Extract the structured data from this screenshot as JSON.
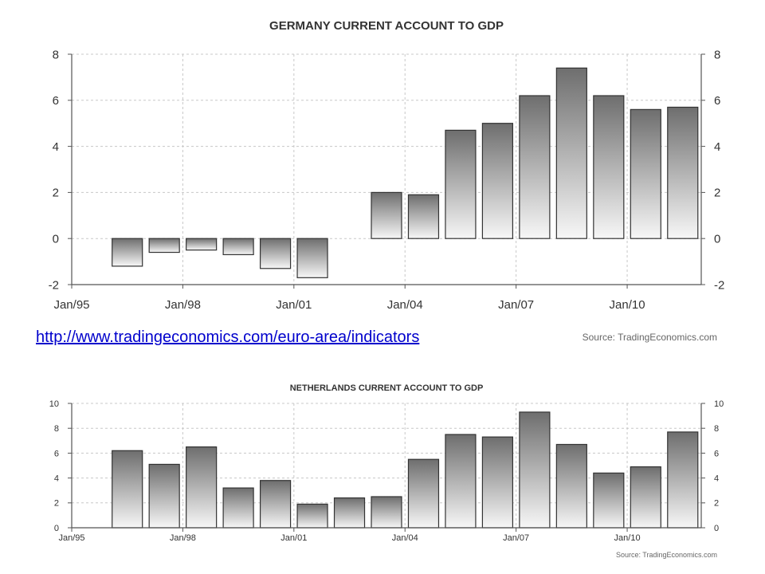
{
  "link": {
    "text": "http://www.tradingeconomics.com/euro-area/indicators"
  },
  "colors": {
    "bar_top": "#6e6e6e",
    "bar_bottom": "#f7f7f7",
    "bar_stroke": "#333333",
    "grid": "#c8c8c8",
    "axis": "#555555",
    "link": "#0000cc"
  },
  "chart_data": [
    {
      "type": "bar",
      "title": "GERMANY CURRENT ACCOUNT TO GDP",
      "source": "Source: TradingEconomics.com",
      "x": [
        "1995",
        "1996",
        "1997",
        "1998",
        "1999",
        "2000",
        "2001",
        "2002",
        "2003",
        "2004",
        "2005",
        "2006",
        "2007",
        "2008",
        "2009",
        "2010",
        "2011"
      ],
      "values": [
        null,
        -1.2,
        -0.6,
        -0.5,
        -0.7,
        -1.3,
        -1.7,
        null,
        2.0,
        1.9,
        4.7,
        5.0,
        6.2,
        7.4,
        6.2,
        5.6,
        5.7
      ],
      "x_tick_labels": [
        "Jan/95",
        "Jan/98",
        "Jan/01",
        "Jan/04",
        "Jan/07",
        "Jan/10"
      ],
      "ylim": [
        -2,
        8
      ],
      "y_ticks": [
        -2,
        0,
        2,
        4,
        6,
        8
      ],
      "grid": true,
      "dual_y_axis": true
    },
    {
      "type": "bar",
      "title": "NETHERLANDS CURRENT ACCOUNT TO GDP",
      "source": "Source: TradingEconomics.com",
      "x": [
        "1995",
        "1996",
        "1997",
        "1998",
        "1999",
        "2000",
        "2001",
        "2002",
        "2003",
        "2004",
        "2005",
        "2006",
        "2007",
        "2008",
        "2009",
        "2010",
        "2011"
      ],
      "values": [
        null,
        6.2,
        5.1,
        6.5,
        3.2,
        3.8,
        1.9,
        2.4,
        2.5,
        5.5,
        7.5,
        7.3,
        9.3,
        6.7,
        4.4,
        4.9,
        7.7
      ],
      "x_tick_labels": [
        "Jan/95",
        "Jan/98",
        "Jan/01",
        "Jan/04",
        "Jan/07",
        "Jan/10"
      ],
      "ylim": [
        0,
        10
      ],
      "y_ticks": [
        0,
        2,
        4,
        6,
        8,
        10
      ],
      "grid": true,
      "dual_y_axis": true
    }
  ]
}
